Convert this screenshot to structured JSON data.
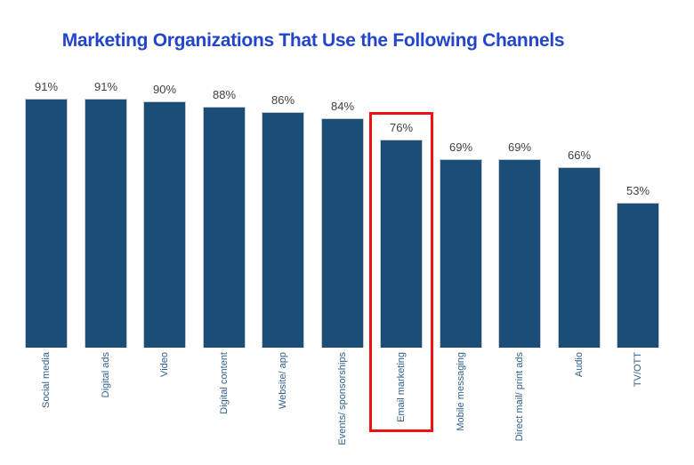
{
  "title": {
    "text": "Marketing Organizations That Use the Following Channels",
    "color": "#2245cb"
  },
  "chart_data": {
    "type": "bar",
    "title": "Marketing Organizations That Use the Following Channels",
    "categories": [
      "Social media",
      "Digital ads",
      "Video",
      "Digital content",
      "Website/ app",
      "Events/ sponsorships",
      "Email marketing",
      "Mobile messaging",
      "Direct mail/ print ads",
      "Audio",
      "TV/OTT"
    ],
    "values": [
      91,
      91,
      90,
      88,
      86,
      84,
      76,
      69,
      69,
      66,
      53
    ],
    "value_labels": [
      "91%",
      "91%",
      "90%",
      "88%",
      "86%",
      "84%",
      "76%",
      "69%",
      "69%",
      "66%",
      "53%"
    ],
    "xlabel": "",
    "ylabel": "",
    "ylim": [
      0,
      100
    ],
    "grid": false,
    "legend": false,
    "axis_lines": false,
    "bar_color": "#1a4e79",
    "bar_border_color": "#c9c9c9",
    "value_label_color": "#414141",
    "category_label_color": "#31618f",
    "title_color": "#2245cb",
    "highlight": {
      "category": "Email marketing",
      "box_color": "#ee1111",
      "box_border_px": 3
    }
  }
}
